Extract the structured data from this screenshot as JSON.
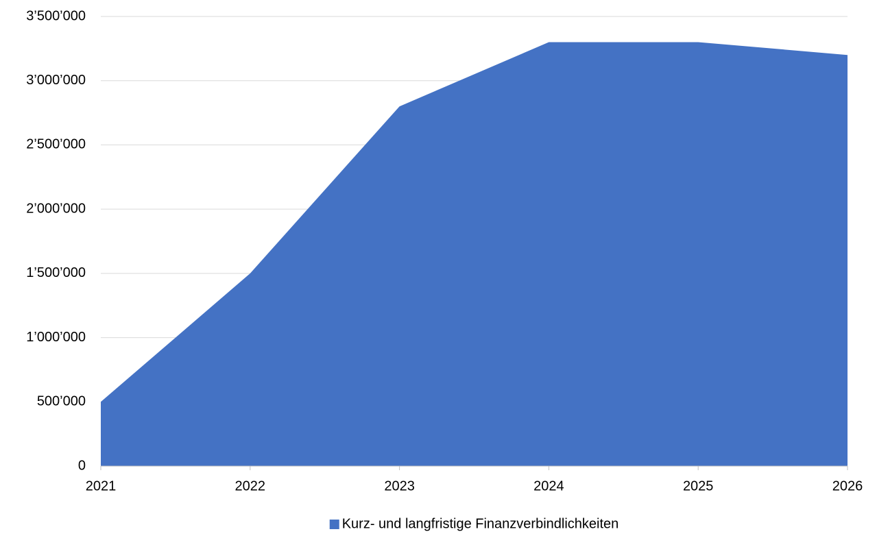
{
  "chart_data": {
    "type": "area",
    "categories": [
      "2021",
      "2022",
      "2023",
      "2024",
      "2025",
      "2026"
    ],
    "series": [
      {
        "name": "Kurz- und langfristige Finanzverbindlichkeiten",
        "color": "#4472c4",
        "values": [
          500000,
          1500000,
          2800000,
          3300000,
          3300000,
          3200000
        ]
      }
    ],
    "ylim": [
      0,
      3500000
    ],
    "yticks": [
      0,
      {
        "value": 500000,
        "label": "500’000"
      },
      {
        "value": 1000000,
        "label": "1’000’000"
      },
      {
        "value": 1500000,
        "label": "1’500’000"
      },
      {
        "value": 2000000,
        "label": "2’000’000"
      },
      {
        "value": 2500000,
        "label": "2’500’000"
      },
      {
        "value": 3000000,
        "label": "3’000’000"
      },
      {
        "value": 3500000,
        "label": "3’500’000"
      }
    ],
    "grid": true,
    "legend": "bottom"
  }
}
